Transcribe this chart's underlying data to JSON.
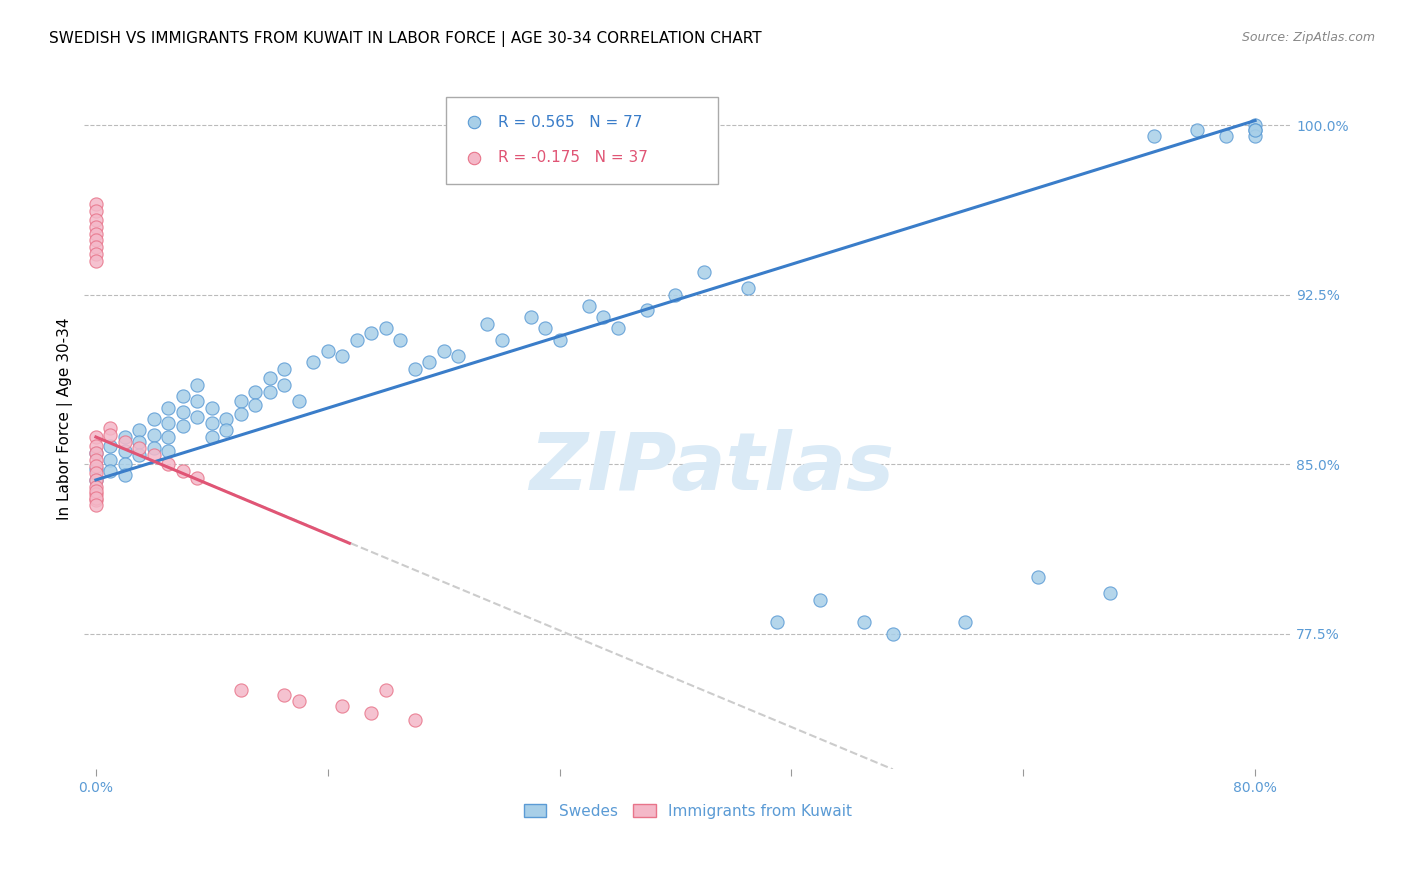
{
  "title": "SWEDISH VS IMMIGRANTS FROM KUWAIT IN LABOR FORCE | AGE 30-34 CORRELATION CHART",
  "source": "Source: ZipAtlas.com",
  "ylabel": "In Labor Force | Age 30-34",
  "right_ytick_labels": [
    "100.0%",
    "92.5%",
    "85.0%",
    "77.5%"
  ],
  "right_ytick_values": [
    1.0,
    0.925,
    0.85,
    0.775
  ],
  "ymin": 0.715,
  "ymax": 1.025,
  "xmin": -0.008,
  "xmax": 0.825,
  "blue_color": "#a8cfe8",
  "blue_edge_color": "#5b9bd5",
  "pink_color": "#f4b8c8",
  "pink_edge_color": "#e8748a",
  "blue_line_color": "#3a7dc9",
  "pink_line_color": "#e05575",
  "gray_dash_color": "#cccccc",
  "grid_color": "#bbbbbb",
  "watermark_color": "#daeaf6",
  "legend_r_blue": "R = 0.565",
  "legend_n_blue": "N = 77",
  "legend_r_pink": "R = -0.175",
  "legend_n_pink": "N = 37",
  "blue_line_x0": 0.0,
  "blue_line_y0": 0.843,
  "blue_line_x1": 0.8,
  "blue_line_y1": 1.002,
  "pink_line_x0": 0.0,
  "pink_line_y0": 0.862,
  "pink_line_x1": 0.175,
  "pink_line_y1": 0.815,
  "gray_line_x0": 0.0,
  "gray_line_y0": 0.862,
  "gray_line_x1": 0.55,
  "gray_line_y1": 0.715,
  "blue_scatter_x": [
    0.0,
    0.0,
    0.0,
    0.01,
    0.01,
    0.01,
    0.02,
    0.02,
    0.02,
    0.02,
    0.03,
    0.03,
    0.03,
    0.04,
    0.04,
    0.04,
    0.05,
    0.05,
    0.05,
    0.05,
    0.06,
    0.06,
    0.06,
    0.07,
    0.07,
    0.07,
    0.08,
    0.08,
    0.08,
    0.09,
    0.09,
    0.1,
    0.1,
    0.11,
    0.11,
    0.12,
    0.12,
    0.13,
    0.13,
    0.14,
    0.15,
    0.16,
    0.17,
    0.18,
    0.19,
    0.2,
    0.21,
    0.22,
    0.23,
    0.24,
    0.25,
    0.27,
    0.28,
    0.3,
    0.31,
    0.32,
    0.34,
    0.35,
    0.36,
    0.38,
    0.4,
    0.42,
    0.45,
    0.47,
    0.5,
    0.53,
    0.55,
    0.6,
    0.65,
    0.7,
    0.73,
    0.76,
    0.78,
    0.8,
    0.8,
    0.8,
    0.8
  ],
  "blue_scatter_y": [
    0.855,
    0.848,
    0.843,
    0.858,
    0.852,
    0.847,
    0.862,
    0.856,
    0.85,
    0.845,
    0.865,
    0.86,
    0.854,
    0.87,
    0.863,
    0.857,
    0.875,
    0.868,
    0.862,
    0.856,
    0.88,
    0.873,
    0.867,
    0.885,
    0.878,
    0.871,
    0.875,
    0.868,
    0.862,
    0.87,
    0.865,
    0.878,
    0.872,
    0.882,
    0.876,
    0.888,
    0.882,
    0.892,
    0.885,
    0.878,
    0.895,
    0.9,
    0.898,
    0.905,
    0.908,
    0.91,
    0.905,
    0.892,
    0.895,
    0.9,
    0.898,
    0.912,
    0.905,
    0.915,
    0.91,
    0.905,
    0.92,
    0.915,
    0.91,
    0.918,
    0.925,
    0.935,
    0.928,
    0.78,
    0.79,
    0.78,
    0.775,
    0.78,
    0.8,
    0.793,
    0.995,
    0.998,
    0.995,
    1.0,
    0.998,
    0.995,
    0.998
  ],
  "pink_scatter_x": [
    0.0,
    0.0,
    0.0,
    0.0,
    0.0,
    0.0,
    0.0,
    0.0,
    0.0,
    0.0,
    0.0,
    0.0,
    0.0,
    0.0,
    0.0,
    0.0,
    0.0,
    0.0,
    0.0,
    0.0,
    0.0,
    0.0,
    0.01,
    0.01,
    0.02,
    0.03,
    0.04,
    0.05,
    0.06,
    0.07,
    0.1,
    0.13,
    0.14,
    0.17,
    0.19,
    0.2,
    0.22
  ],
  "pink_scatter_y": [
    0.862,
    0.858,
    0.855,
    0.852,
    0.849,
    0.846,
    0.843,
    0.84,
    0.837,
    0.834,
    0.965,
    0.962,
    0.958,
    0.955,
    0.952,
    0.949,
    0.946,
    0.943,
    0.94,
    0.838,
    0.835,
    0.832,
    0.866,
    0.863,
    0.86,
    0.857,
    0.854,
    0.85,
    0.847,
    0.844,
    0.75,
    0.748,
    0.745,
    0.743,
    0.74,
    0.75,
    0.737
  ]
}
